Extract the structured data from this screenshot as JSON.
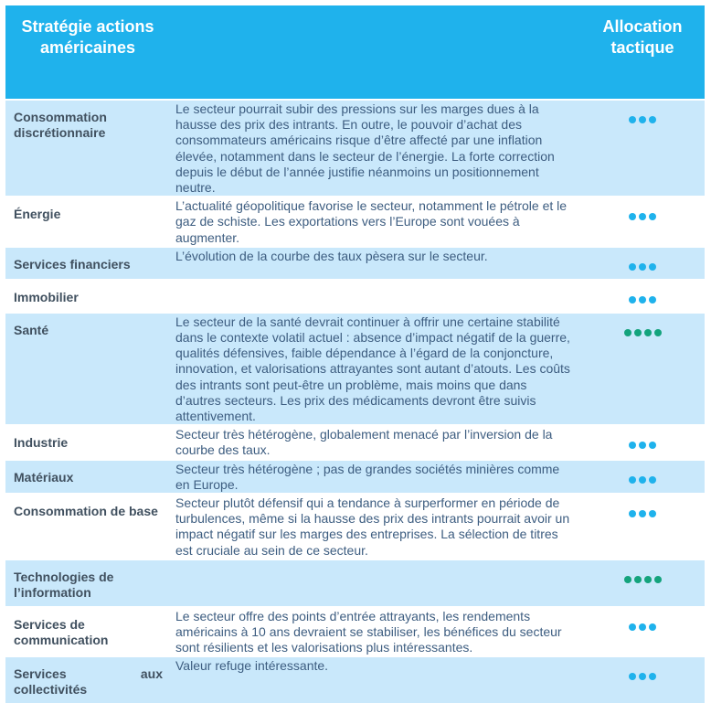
{
  "header": {
    "col1": "Stratégie actions américaines",
    "col3": "Allocation tactique"
  },
  "colors": {
    "header_bg": "#1fb2ec",
    "row_blue": "#c9e8fb",
    "dot_neutral": "#1fb2ec",
    "dot_positive": "#13a37c"
  },
  "rows": [
    {
      "sector": "Consommation discrétionnaire",
      "description": "Le secteur pourrait subir des pressions sur les marges dues à la hausse des prix des intrants. En outre, le pouvoir d’achat des consommateurs américains risque d’être affecté par une inflation élevée, notamment dans le secteur de l’énergie. La forte correction depuis le début de l’année justifie néanmoins un positionnement neutre.",
      "dots": 3
    },
    {
      "sector": "Énergie",
      "description": "L’actualité géopolitique favorise le secteur, notamment le pétrole et le gaz de schiste. Les exportations vers l’Europe sont vouées à augmenter.",
      "dots": 3
    },
    {
      "sector": "Services financiers",
      "description": "L’évolution de la courbe des taux pèsera sur le secteur.",
      "dots": 3
    },
    {
      "sector": "Immobilier",
      "description": "",
      "dots": 3
    },
    {
      "sector": "Santé",
      "description": "Le secteur de la santé devrait continuer à offrir une certaine stabilité dans le contexte volatil actuel : absence d’impact négatif de la guerre, qualités défensives, faible dépendance à l’égard de la conjoncture, innovation, et valorisations attrayantes sont autant d’atouts. Les coûts des intrants sont peut-être un problème, mais moins que dans d’autres secteurs. Les prix des médicaments devront être suivis attentivement.",
      "dots": 4
    },
    {
      "sector": "Industrie",
      "description": "Secteur très hétérogène, globalement menacé par l’inversion de la courbe des taux.",
      "dots": 3
    },
    {
      "sector": "Matériaux",
      "description": "Secteur très hétérogène ; pas de grandes sociétés minières comme en Europe.",
      "dots": 3
    },
    {
      "sector": "Consommation de base",
      "description": "Secteur plutôt défensif qui a tendance à surperformer en période de turbulences, même si la hausse des prix des intrants pourrait avoir un impact négatif sur les marges des entreprises. La sélection de titres est cruciale au sein de ce secteur.",
      "dots": 3
    },
    {
      "sector": "Technologies de l’information",
      "description": "",
      "dots": 4
    },
    {
      "sector": "Services de communication",
      "description": "Le secteur offre des points d’entrée attrayants, les rendements américains à 10 ans devraient se stabiliser, les bénéfices du secteur sont résilients et les valorisations plus intéressantes.",
      "dots": 3
    },
    {
      "sector": "Services aux collectivités",
      "description": "Valeur refuge intéressante.",
      "dots": 3
    }
  ]
}
